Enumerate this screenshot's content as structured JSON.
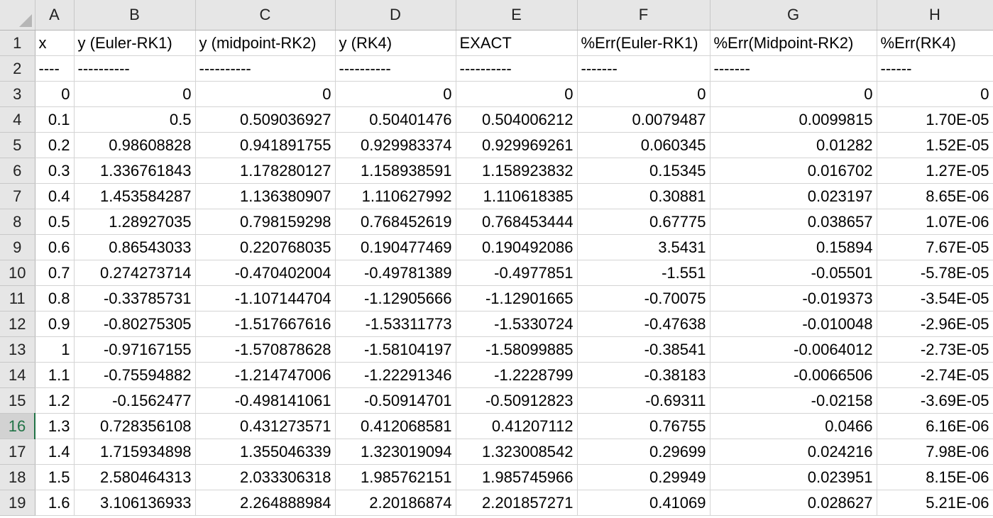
{
  "columns": [
    "A",
    "B",
    "C",
    "D",
    "E",
    "F",
    "G",
    "H"
  ],
  "active_row": 16,
  "rows": [
    {
      "n": "1",
      "cells": [
        "x",
        "y (Euler-RK1)",
        "y (midpoint-RK2)",
        "y (RK4)",
        "EXACT",
        "%Err(Euler-RK1)",
        "%Err(Midpoint-RK2)",
        "%Err(RK4)"
      ],
      "text": true
    },
    {
      "n": "2",
      "cells": [
        "----",
        "----------",
        "----------",
        "----------",
        "----------",
        "-------",
        "-------",
        "------"
      ],
      "text": true
    },
    {
      "n": "3",
      "cells": [
        "0",
        "0",
        "0",
        "0",
        "0",
        "0",
        "0",
        "0"
      ]
    },
    {
      "n": "4",
      "cells": [
        "0.1",
        "0.5",
        "0.509036927",
        "0.50401476",
        "0.504006212",
        "0.0079487",
        "0.0099815",
        "1.70E-05"
      ]
    },
    {
      "n": "5",
      "cells": [
        "0.2",
        "0.98608828",
        "0.941891755",
        "0.929983374",
        "0.929969261",
        "0.060345",
        "0.01282",
        "1.52E-05"
      ]
    },
    {
      "n": "6",
      "cells": [
        "0.3",
        "1.336761843",
        "1.178280127",
        "1.158938591",
        "1.158923832",
        "0.15345",
        "0.016702",
        "1.27E-05"
      ]
    },
    {
      "n": "7",
      "cells": [
        "0.4",
        "1.453584287",
        "1.136380907",
        "1.110627992",
        "1.110618385",
        "0.30881",
        "0.023197",
        "8.65E-06"
      ]
    },
    {
      "n": "8",
      "cells": [
        "0.5",
        "1.28927035",
        "0.798159298",
        "0.768452619",
        "0.768453444",
        "0.67775",
        "0.038657",
        "1.07E-06"
      ]
    },
    {
      "n": "9",
      "cells": [
        "0.6",
        "0.86543033",
        "0.220768035",
        "0.190477469",
        "0.190492086",
        "3.5431",
        "0.15894",
        "7.67E-05"
      ]
    },
    {
      "n": "10",
      "cells": [
        "0.7",
        "0.274273714",
        "-0.470402004",
        "-0.49781389",
        "-0.4977851",
        "-1.551",
        "-0.05501",
        "-5.78E-05"
      ]
    },
    {
      "n": "11",
      "cells": [
        "0.8",
        "-0.33785731",
        "-1.107144704",
        "-1.12905666",
        "-1.12901665",
        "-0.70075",
        "-0.019373",
        "-3.54E-05"
      ]
    },
    {
      "n": "12",
      "cells": [
        "0.9",
        "-0.80275305",
        "-1.517667616",
        "-1.53311773",
        "-1.5330724",
        "-0.47638",
        "-0.010048",
        "-2.96E-05"
      ]
    },
    {
      "n": "13",
      "cells": [
        "1",
        "-0.97167155",
        "-1.570878628",
        "-1.58104197",
        "-1.58099885",
        "-0.38541",
        "-0.0064012",
        "-2.73E-05"
      ]
    },
    {
      "n": "14",
      "cells": [
        "1.1",
        "-0.75594882",
        "-1.214747006",
        "-1.22291346",
        "-1.2228799",
        "-0.38183",
        "-0.0066506",
        "-2.74E-05"
      ]
    },
    {
      "n": "15",
      "cells": [
        "1.2",
        "-0.1562477",
        "-0.498141061",
        "-0.50914701",
        "-0.50912823",
        "-0.69311",
        "-0.02158",
        "-3.69E-05"
      ]
    },
    {
      "n": "16",
      "cells": [
        "1.3",
        "0.728356108",
        "0.431273571",
        "0.412068581",
        "0.41207112",
        "0.76755",
        "0.0466",
        "6.16E-06"
      ]
    },
    {
      "n": "17",
      "cells": [
        "1.4",
        "1.715934898",
        "1.355046339",
        "1.323019094",
        "1.323008542",
        "0.29699",
        "0.024216",
        "7.98E-06"
      ]
    },
    {
      "n": "18",
      "cells": [
        "1.5",
        "2.580464313",
        "2.033306318",
        "1.985762151",
        "1.985745966",
        "0.29949",
        "0.023951",
        "8.15E-06"
      ]
    },
    {
      "n": "19",
      "cells": [
        "1.6",
        "3.106136933",
        "2.264888984",
        "2.20186874",
        "2.201857271",
        "0.41069",
        "0.028627",
        "5.21E-06"
      ]
    }
  ]
}
